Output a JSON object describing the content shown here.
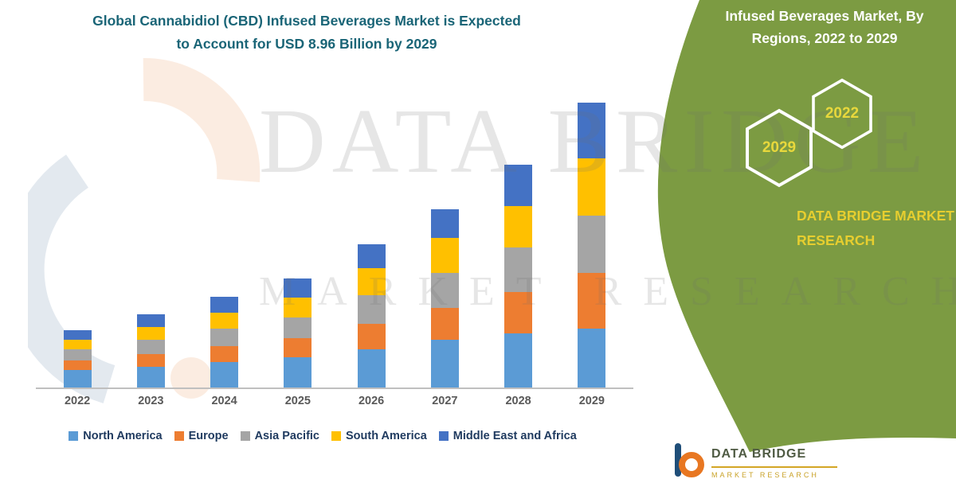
{
  "page": {
    "title_line1": "Global Cannabidiol (CBD) Infused Beverages Market is Expected",
    "title_line2": "to Account for USD 8.96 Billion by 2029"
  },
  "side_panel": {
    "heading_line1": "Infused Beverages Market, By",
    "heading_line2": "Regions, 2022 to 2029",
    "hexagon_left_year": "2029",
    "hexagon_right_year": "2022",
    "brand_line1": "DATA BRIDGE MARKET",
    "brand_line2": "RESEARCH",
    "panel_color": "#7C9B42",
    "accent_text_color": "#E7CE2F"
  },
  "watermark": {
    "line1": "DATA BRIDGE",
    "line2": "MARKET RESEARCH"
  },
  "footer_logo": {
    "brand": "DATA BRIDGE",
    "sub_brand": "MARKET RESEARCH"
  },
  "chart_data": {
    "type": "bar",
    "stacked": true,
    "title": "Global Cannabidiol (CBD) Infused Beverages Market is Expected to Account for USD 8.96 Billion by 2029",
    "unit": "USD Billion",
    "categories": [
      "2022",
      "2023",
      "2024",
      "2025",
      "2026",
      "2027",
      "2028",
      "2029"
    ],
    "series": [
      {
        "name": "North America",
        "color": "#5B9BD5",
        "values": [
          0.55,
          0.65,
          0.8,
          0.95,
          1.2,
          1.5,
          1.7,
          1.85
        ]
      },
      {
        "name": "Europe",
        "color": "#ED7D31",
        "values": [
          0.3,
          0.4,
          0.5,
          0.6,
          0.8,
          1.0,
          1.3,
          1.75
        ]
      },
      {
        "name": "Asia Pacific",
        "color": "#A5A5A5",
        "values": [
          0.35,
          0.45,
          0.55,
          0.65,
          0.9,
          1.1,
          1.4,
          1.8
        ]
      },
      {
        "name": "South America",
        "color": "#FFC000",
        "values": [
          0.3,
          0.4,
          0.5,
          0.62,
          0.85,
          1.1,
          1.3,
          1.8
        ]
      },
      {
        "name": "Middle East and Africa",
        "color": "#4472C4",
        "values": [
          0.3,
          0.4,
          0.5,
          0.6,
          0.75,
          0.9,
          1.3,
          1.76
        ]
      }
    ],
    "totals": [
      1.8,
      2.3,
      2.85,
      3.42,
      4.5,
      5.6,
      7.0,
      8.96
    ],
    "ylim": [
      0,
      9.5
    ],
    "xlabel": "",
    "ylabel": "",
    "grid": false,
    "legend_position": "bottom"
  }
}
